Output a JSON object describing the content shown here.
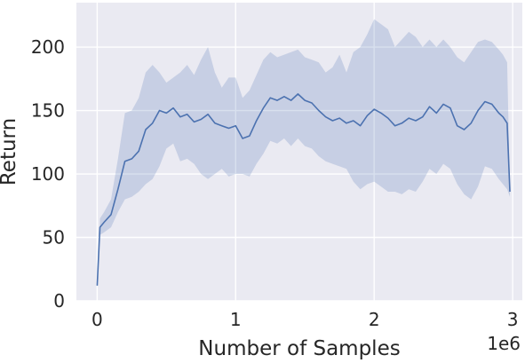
{
  "chart_data": {
    "type": "line",
    "title": "",
    "xlabel": "Number of Samples",
    "ylabel": "Return",
    "x_offset_label": "1e6",
    "xlim": [
      -0.15,
      3.07
    ],
    "ylim": [
      0,
      235
    ],
    "x_ticks": [
      0,
      1,
      2,
      3
    ],
    "x_tick_labels": [
      "0",
      "1",
      "2",
      "3"
    ],
    "y_ticks": [
      0,
      50,
      100,
      150,
      200
    ],
    "y_tick_labels": [
      "0",
      "50",
      "100",
      "150",
      "200"
    ],
    "grid": true,
    "legend": "none",
    "colors": {
      "background": "#eaeaf2",
      "line": "#4c72b0",
      "band": "#4c72b0"
    },
    "series": [
      {
        "x": [
          0.0,
          0.02,
          0.05,
          0.1,
          0.15,
          0.2,
          0.25,
          0.3,
          0.35,
          0.4,
          0.45,
          0.5,
          0.55,
          0.6,
          0.65,
          0.7,
          0.75,
          0.8,
          0.85,
          0.9,
          0.95,
          1.0,
          1.05,
          1.1,
          1.15,
          1.2,
          1.25,
          1.3,
          1.35,
          1.4,
          1.45,
          1.5,
          1.55,
          1.6,
          1.65,
          1.7,
          1.75,
          1.8,
          1.85,
          1.9,
          1.95,
          2.0,
          2.05,
          2.1,
          2.15,
          2.2,
          2.25,
          2.3,
          2.35,
          2.4,
          2.45,
          2.5,
          2.55,
          2.6,
          2.65,
          2.7,
          2.75,
          2.8,
          2.85,
          2.9,
          2.93,
          2.96,
          2.98
        ],
        "mean": [
          12,
          58,
          62,
          68,
          88,
          110,
          112,
          118,
          135,
          140,
          150,
          148,
          152,
          145,
          147,
          141,
          143,
          147,
          140,
          138,
          136,
          138,
          128,
          130,
          142,
          152,
          160,
          158,
          161,
          158,
          163,
          158,
          156,
          150,
          145,
          142,
          144,
          140,
          142,
          138,
          146,
          151,
          148,
          144,
          138,
          140,
          144,
          142,
          145,
          153,
          148,
          155,
          152,
          138,
          135,
          140,
          150,
          157,
          155,
          148,
          145,
          140,
          86
        ],
        "upper": [
          14,
          65,
          70,
          80,
          112,
          148,
          150,
          160,
          180,
          186,
          180,
          172,
          176,
          180,
          186,
          178,
          190,
          200,
          180,
          168,
          176,
          176,
          160,
          166,
          178,
          190,
          196,
          192,
          194,
          196,
          198,
          192,
          190,
          188,
          180,
          184,
          194,
          180,
          196,
          200,
          210,
          222,
          218,
          214,
          200,
          206,
          212,
          208,
          200,
          206,
          200,
          206,
          200,
          192,
          188,
          196,
          204,
          206,
          204,
          198,
          194,
          188,
          90
        ],
        "lower": [
          10,
          52,
          54,
          58,
          70,
          80,
          82,
          86,
          92,
          96,
          106,
          120,
          124,
          110,
          112,
          108,
          100,
          96,
          100,
          104,
          98,
          100,
          100,
          98,
          108,
          116,
          126,
          124,
          128,
          122,
          128,
          122,
          120,
          114,
          110,
          108,
          106,
          104,
          94,
          88,
          92,
          94,
          90,
          86,
          86,
          84,
          88,
          86,
          94,
          104,
          100,
          108,
          104,
          92,
          84,
          80,
          90,
          106,
          104,
          96,
          92,
          88,
          82
        ]
      }
    ]
  }
}
